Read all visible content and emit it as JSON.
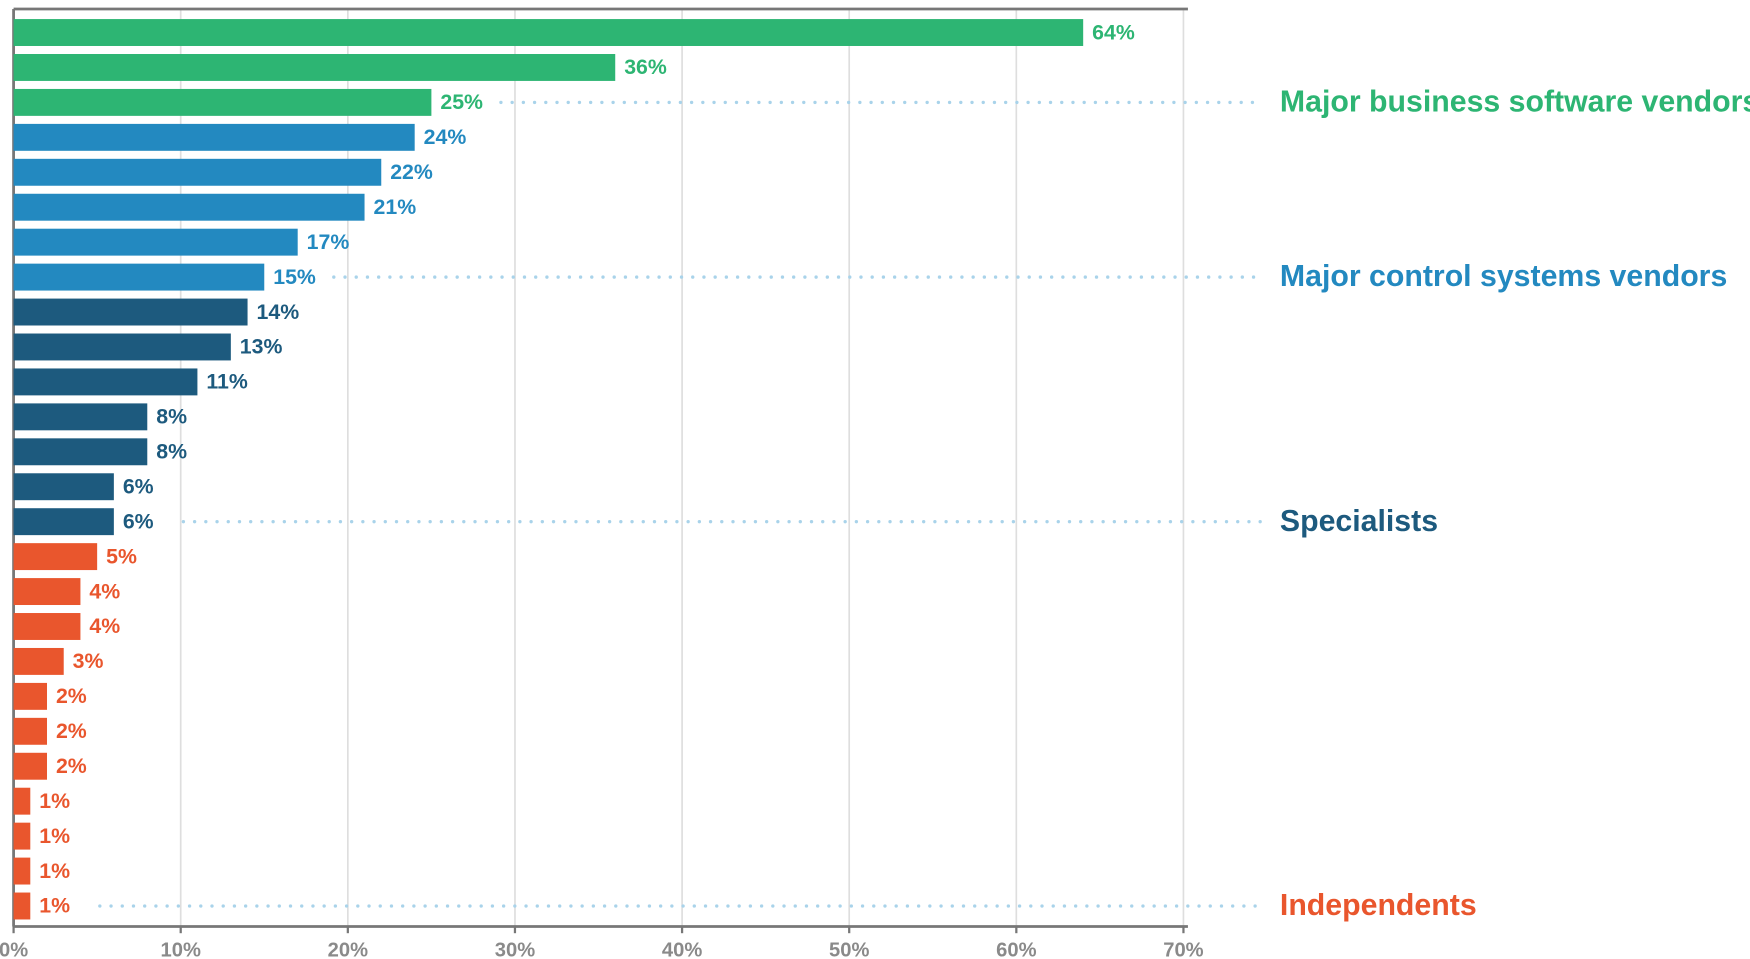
{
  "chart_data": {
    "type": "bar",
    "orientation": "horizontal",
    "xlim": [
      0,
      70
    ],
    "xticks": [
      {
        "value": 0,
        "label": "0%"
      },
      {
        "value": 10,
        "label": "10%"
      },
      {
        "value": 20,
        "label": "20%"
      },
      {
        "value": 30,
        "label": "30%"
      },
      {
        "value": 40,
        "label": "40%"
      },
      {
        "value": 50,
        "label": "50%"
      },
      {
        "value": 60,
        "label": "60%"
      },
      {
        "value": 70,
        "label": "70%"
      }
    ],
    "grid": true,
    "series": [
      {
        "name": "Major business software vendors",
        "color": "#2db573",
        "values": [
          64,
          36,
          25
        ],
        "value_labels": [
          "64%",
          "36%",
          "25%"
        ]
      },
      {
        "name": "Major control systems vendors",
        "color": "#2389c0",
        "values": [
          24,
          22,
          21,
          17,
          15
        ],
        "value_labels": [
          "24%",
          "22%",
          "21%",
          "17%",
          "15%"
        ]
      },
      {
        "name": "Specialists",
        "color": "#1d5a7e",
        "values": [
          14,
          13,
          11,
          8,
          8,
          6,
          6
        ],
        "value_labels": [
          "14%",
          "13%",
          "11%",
          "8%",
          "8%",
          "6%",
          "6%"
        ]
      },
      {
        "name": "Independents",
        "color": "#e9562d",
        "values": [
          5,
          4,
          4,
          3,
          2,
          2,
          2,
          1,
          1,
          1,
          1
        ],
        "value_labels": [
          "5%",
          "4%",
          "4%",
          "3%",
          "2%",
          "2%",
          "2%",
          "1%",
          "1%",
          "1%",
          "1%"
        ]
      }
    ]
  }
}
